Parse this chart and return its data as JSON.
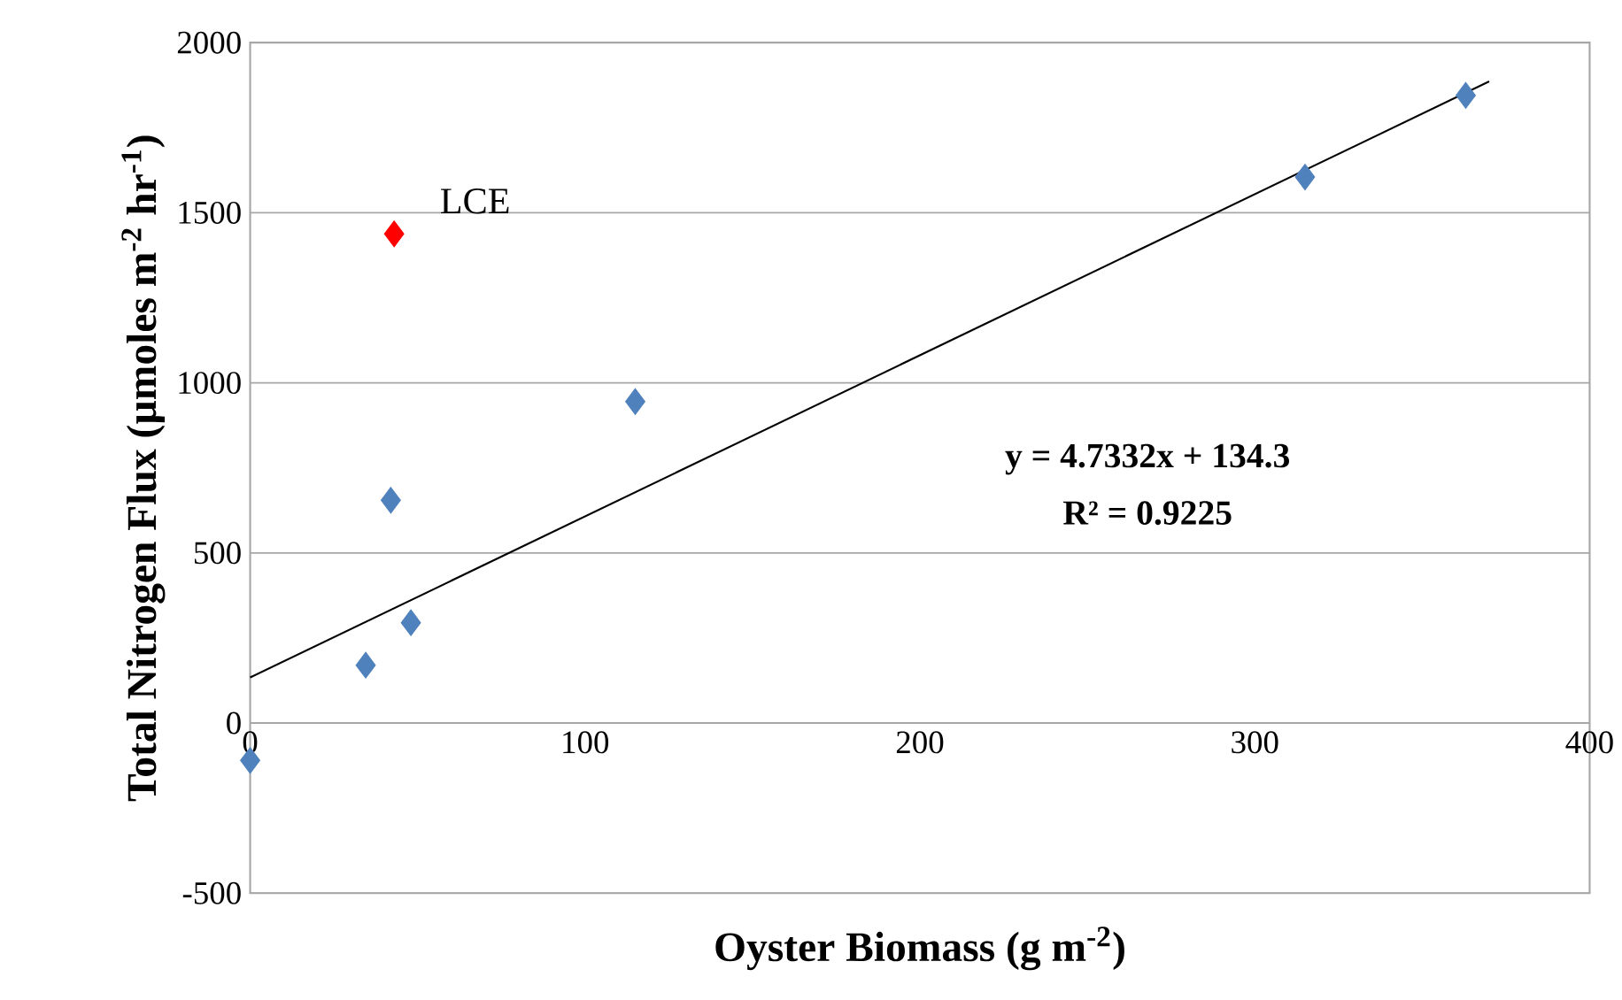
{
  "chart_data": {
    "type": "scatter",
    "xlabel": "Oyster Biomass (g m$^{-2}$)",
    "ylabel": "Total Nitrogen Flux (µmoles m$^{-2}$ hr$^{-1}$)",
    "xlim": [
      0,
      400
    ],
    "ylim": [
      -500,
      2000
    ],
    "xticks": [
      0,
      100,
      200,
      300,
      400
    ],
    "yticks": [
      -500,
      0,
      500,
      1000,
      1500,
      2000
    ],
    "grid": "y",
    "marker": "diamond",
    "series": [
      {
        "color": "#4f81bd",
        "x": [
          0,
          34.5,
          42,
          48,
          115,
          315,
          363
        ],
        "values": [
          -110,
          170,
          655,
          295,
          945,
          1605,
          1845
        ]
      },
      {
        "color": "#ff0000",
        "x": [
          43
        ],
        "values": [
          1438
        ]
      },
      {
        "type": "line",
        "marker": "none",
        "color": "#000000",
        "x": [
          0,
          370
        ],
        "values": [
          134,
          1886
        ]
      }
    ],
    "annotations": [
      {
        "text": "LCE",
        "x": 43,
        "y": 1438
      },
      "y = 4.7332x + 134.3",
      "R² = 0.9225"
    ]
  }
}
